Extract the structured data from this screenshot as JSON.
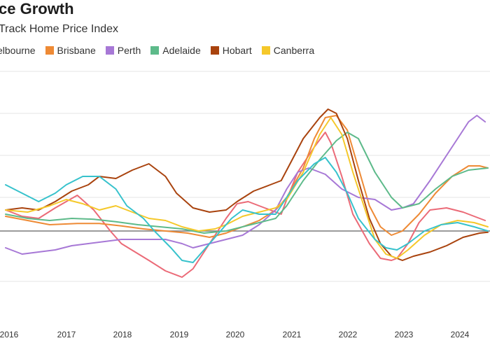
{
  "chart_data": {
    "type": "line",
    "title": "ce Growth",
    "subtitle": "Track Home Price Index",
    "xlabel": "",
    "ylabel": "",
    "grid": true,
    "legend_placement": "top-left",
    "x_ticks": [
      "2016",
      "2017",
      "2018",
      "2019",
      "2020",
      "2021",
      "2022",
      "2023",
      "2024"
    ],
    "x_range": [
      2015.9,
      2024.65
    ],
    "y_range": [
      -20,
      38
    ],
    "zero_line": true,
    "series": [
      {
        "name": "elbourne",
        "color": "#eb6a77",
        "show_swatch": false,
        "points": [
          [
            2015.9,
            5
          ],
          [
            2016.2,
            3.5
          ],
          [
            2016.5,
            3
          ],
          [
            2016.8,
            5.5
          ],
          [
            2017.0,
            7
          ],
          [
            2017.2,
            8.5
          ],
          [
            2017.5,
            5
          ],
          [
            2017.8,
            0
          ],
          [
            2018.0,
            -3
          ],
          [
            2018.5,
            -7
          ],
          [
            2018.8,
            -9.5
          ],
          [
            2019.1,
            -11
          ],
          [
            2019.3,
            -9
          ],
          [
            2019.6,
            -3
          ],
          [
            2019.9,
            3
          ],
          [
            2020.1,
            6.5
          ],
          [
            2020.3,
            7
          ],
          [
            2020.6,
            5.5
          ],
          [
            2020.9,
            4
          ],
          [
            2021.0,
            7.5
          ],
          [
            2021.2,
            14
          ],
          [
            2021.5,
            20
          ],
          [
            2021.7,
            23.5
          ],
          [
            2021.8,
            21
          ],
          [
            2022.0,
            13
          ],
          [
            2022.2,
            4
          ],
          [
            2022.5,
            -3
          ],
          [
            2022.7,
            -6.5
          ],
          [
            2022.9,
            -7
          ],
          [
            2023.0,
            -6.5
          ],
          [
            2023.2,
            -3
          ],
          [
            2023.4,
            2
          ],
          [
            2023.6,
            5
          ],
          [
            2023.9,
            5.5
          ],
          [
            2024.2,
            4.5
          ],
          [
            2024.4,
            3.5
          ],
          [
            2024.6,
            2.5
          ]
        ]
      },
      {
        "name": "Brisbane",
        "color": "#ee8a35",
        "show_swatch": true,
        "points": [
          [
            2015.9,
            3.5
          ],
          [
            2016.3,
            2.5
          ],
          [
            2016.7,
            1.5
          ],
          [
            2017.2,
            1.8
          ],
          [
            2017.6,
            1.8
          ],
          [
            2018.0,
            1.2
          ],
          [
            2018.4,
            0.5
          ],
          [
            2018.8,
            0
          ],
          [
            2019.2,
            -0.5
          ],
          [
            2019.6,
            -1.5
          ],
          [
            2019.9,
            -0.5
          ],
          [
            2020.2,
            1
          ],
          [
            2020.5,
            2.5
          ],
          [
            2020.8,
            5
          ],
          [
            2021.0,
            8
          ],
          [
            2021.3,
            15
          ],
          [
            2021.5,
            22
          ],
          [
            2021.7,
            27
          ],
          [
            2021.9,
            27.5
          ],
          [
            2022.1,
            24
          ],
          [
            2022.3,
            15
          ],
          [
            2022.5,
            6
          ],
          [
            2022.7,
            1
          ],
          [
            2022.9,
            -1
          ],
          [
            2023.1,
            0
          ],
          [
            2023.4,
            4
          ],
          [
            2023.7,
            9
          ],
          [
            2024.0,
            13
          ],
          [
            2024.3,
            15.5
          ],
          [
            2024.5,
            15.5
          ],
          [
            2024.65,
            15
          ]
        ]
      },
      {
        "name": "Perth",
        "color": "#a778d6",
        "show_swatch": true,
        "points": [
          [
            2015.9,
            -4
          ],
          [
            2016.2,
            -5.5
          ],
          [
            2016.5,
            -5
          ],
          [
            2016.8,
            -4.5
          ],
          [
            2017.1,
            -3.5
          ],
          [
            2017.4,
            -3
          ],
          [
            2017.7,
            -2.5
          ],
          [
            2018.0,
            -2
          ],
          [
            2018.4,
            -2
          ],
          [
            2018.8,
            -2
          ],
          [
            2019.1,
            -3
          ],
          [
            2019.3,
            -4
          ],
          [
            2019.6,
            -3
          ],
          [
            2019.9,
            -2
          ],
          [
            2020.2,
            -1
          ],
          [
            2020.5,
            1.5
          ],
          [
            2020.8,
            5
          ],
          [
            2021.0,
            10
          ],
          [
            2021.2,
            14
          ],
          [
            2021.4,
            15
          ],
          [
            2021.7,
            13.5
          ],
          [
            2022.0,
            10
          ],
          [
            2022.3,
            8
          ],
          [
            2022.6,
            7.5
          ],
          [
            2022.9,
            5
          ],
          [
            2023.1,
            5.5
          ],
          [
            2023.3,
            6.5
          ],
          [
            2023.6,
            12
          ],
          [
            2023.9,
            18
          ],
          [
            2024.1,
            22
          ],
          [
            2024.3,
            26
          ],
          [
            2024.45,
            27.5
          ],
          [
            2024.6,
            26
          ]
        ]
      },
      {
        "name": "Adelaide",
        "color": "#5dba8a",
        "show_swatch": true,
        "points": [
          [
            2015.9,
            4
          ],
          [
            2016.3,
            3
          ],
          [
            2016.7,
            2.5
          ],
          [
            2017.1,
            3
          ],
          [
            2017.5,
            2.8
          ],
          [
            2017.9,
            2.2
          ],
          [
            2018.3,
            1.5
          ],
          [
            2018.7,
            1
          ],
          [
            2019.1,
            0.5
          ],
          [
            2019.5,
            -0.5
          ],
          [
            2019.9,
            0
          ],
          [
            2020.2,
            1
          ],
          [
            2020.5,
            2
          ],
          [
            2020.8,
            3
          ],
          [
            2021.0,
            6
          ],
          [
            2021.3,
            12
          ],
          [
            2021.6,
            17
          ],
          [
            2021.9,
            21.5
          ],
          [
            2022.1,
            23.5
          ],
          [
            2022.3,
            22
          ],
          [
            2022.6,
            14
          ],
          [
            2022.9,
            8
          ],
          [
            2023.1,
            5.5
          ],
          [
            2023.4,
            6.5
          ],
          [
            2023.7,
            10
          ],
          [
            2024.0,
            13
          ],
          [
            2024.3,
            14.5
          ],
          [
            2024.65,
            15
          ]
        ]
      },
      {
        "name": "Hobart",
        "color": "#a9430e",
        "show_swatch": true,
        "points": [
          [
            2015.9,
            5
          ],
          [
            2016.2,
            5.5
          ],
          [
            2016.5,
            5
          ],
          [
            2016.8,
            7
          ],
          [
            2017.1,
            9.5
          ],
          [
            2017.4,
            11
          ],
          [
            2017.6,
            13
          ],
          [
            2017.9,
            12.5
          ],
          [
            2018.2,
            14.5
          ],
          [
            2018.5,
            16
          ],
          [
            2018.8,
            13
          ],
          [
            2019.0,
            9
          ],
          [
            2019.3,
            5.5
          ],
          [
            2019.6,
            4.5
          ],
          [
            2019.9,
            5
          ],
          [
            2020.1,
            7
          ],
          [
            2020.4,
            9.5
          ],
          [
            2020.7,
            11
          ],
          [
            2020.9,
            12
          ],
          [
            2021.1,
            17
          ],
          [
            2021.3,
            22
          ],
          [
            2021.6,
            27
          ],
          [
            2021.75,
            29
          ],
          [
            2021.9,
            28
          ],
          [
            2022.1,
            22
          ],
          [
            2022.3,
            12
          ],
          [
            2022.5,
            3
          ],
          [
            2022.7,
            -3
          ],
          [
            2022.9,
            -6
          ],
          [
            2023.1,
            -7
          ],
          [
            2023.3,
            -6
          ],
          [
            2023.6,
            -5
          ],
          [
            2023.9,
            -3.5
          ],
          [
            2024.2,
            -1.5
          ],
          [
            2024.5,
            -0.5
          ],
          [
            2024.65,
            -0.3
          ]
        ]
      },
      {
        "name": "Canberra",
        "color": "#f5c82a",
        "show_swatch": true,
        "points": [
          [
            2015.9,
            5
          ],
          [
            2016.3,
            4.5
          ],
          [
            2016.7,
            6
          ],
          [
            2017.0,
            7.5
          ],
          [
            2017.3,
            6.5
          ],
          [
            2017.6,
            5
          ],
          [
            2017.9,
            6
          ],
          [
            2018.2,
            4.5
          ],
          [
            2018.5,
            3
          ],
          [
            2018.8,
            2.5
          ],
          [
            2019.1,
            1
          ],
          [
            2019.4,
            0
          ],
          [
            2019.7,
            0.5
          ],
          [
            2019.9,
            1.5
          ],
          [
            2020.2,
            3.5
          ],
          [
            2020.5,
            4.5
          ],
          [
            2020.8,
            5.5
          ],
          [
            2021.0,
            7.5
          ],
          [
            2021.3,
            14
          ],
          [
            2021.6,
            23
          ],
          [
            2021.8,
            27
          ],
          [
            2022.0,
            23
          ],
          [
            2022.2,
            14
          ],
          [
            2022.4,
            6
          ],
          [
            2022.6,
            -2
          ],
          [
            2022.8,
            -5.5
          ],
          [
            2023.0,
            -6.5
          ],
          [
            2023.2,
            -4.5
          ],
          [
            2023.5,
            -1
          ],
          [
            2023.8,
            1.5
          ],
          [
            2024.1,
            2.5
          ],
          [
            2024.4,
            2
          ],
          [
            2024.65,
            1
          ]
        ]
      },
      {
        "name": "",
        "color": "#37c2cc",
        "show_swatch": false,
        "points": [
          [
            2015.9,
            11
          ],
          [
            2016.2,
            9
          ],
          [
            2016.5,
            7
          ],
          [
            2016.8,
            9
          ],
          [
            2017.0,
            11
          ],
          [
            2017.3,
            13
          ],
          [
            2017.6,
            13
          ],
          [
            2017.9,
            10
          ],
          [
            2018.1,
            6
          ],
          [
            2018.4,
            3
          ],
          [
            2018.6,
            0
          ],
          [
            2018.9,
            -4
          ],
          [
            2019.1,
            -7
          ],
          [
            2019.3,
            -7.5
          ],
          [
            2019.6,
            -3
          ],
          [
            2019.8,
            0
          ],
          [
            2020.0,
            3
          ],
          [
            2020.2,
            5
          ],
          [
            2020.5,
            4
          ],
          [
            2020.8,
            4
          ],
          [
            2021.0,
            8
          ],
          [
            2021.2,
            12
          ],
          [
            2021.5,
            16
          ],
          [
            2021.7,
            17.5
          ],
          [
            2021.9,
            14
          ],
          [
            2022.1,
            9
          ],
          [
            2022.3,
            3
          ],
          [
            2022.6,
            -2
          ],
          [
            2022.8,
            -4
          ],
          [
            2023.0,
            -4.5
          ],
          [
            2023.2,
            -3
          ],
          [
            2023.5,
            0
          ],
          [
            2023.8,
            1.5
          ],
          [
            2024.1,
            2
          ],
          [
            2024.4,
            1
          ],
          [
            2024.65,
            0
          ]
        ]
      }
    ]
  }
}
